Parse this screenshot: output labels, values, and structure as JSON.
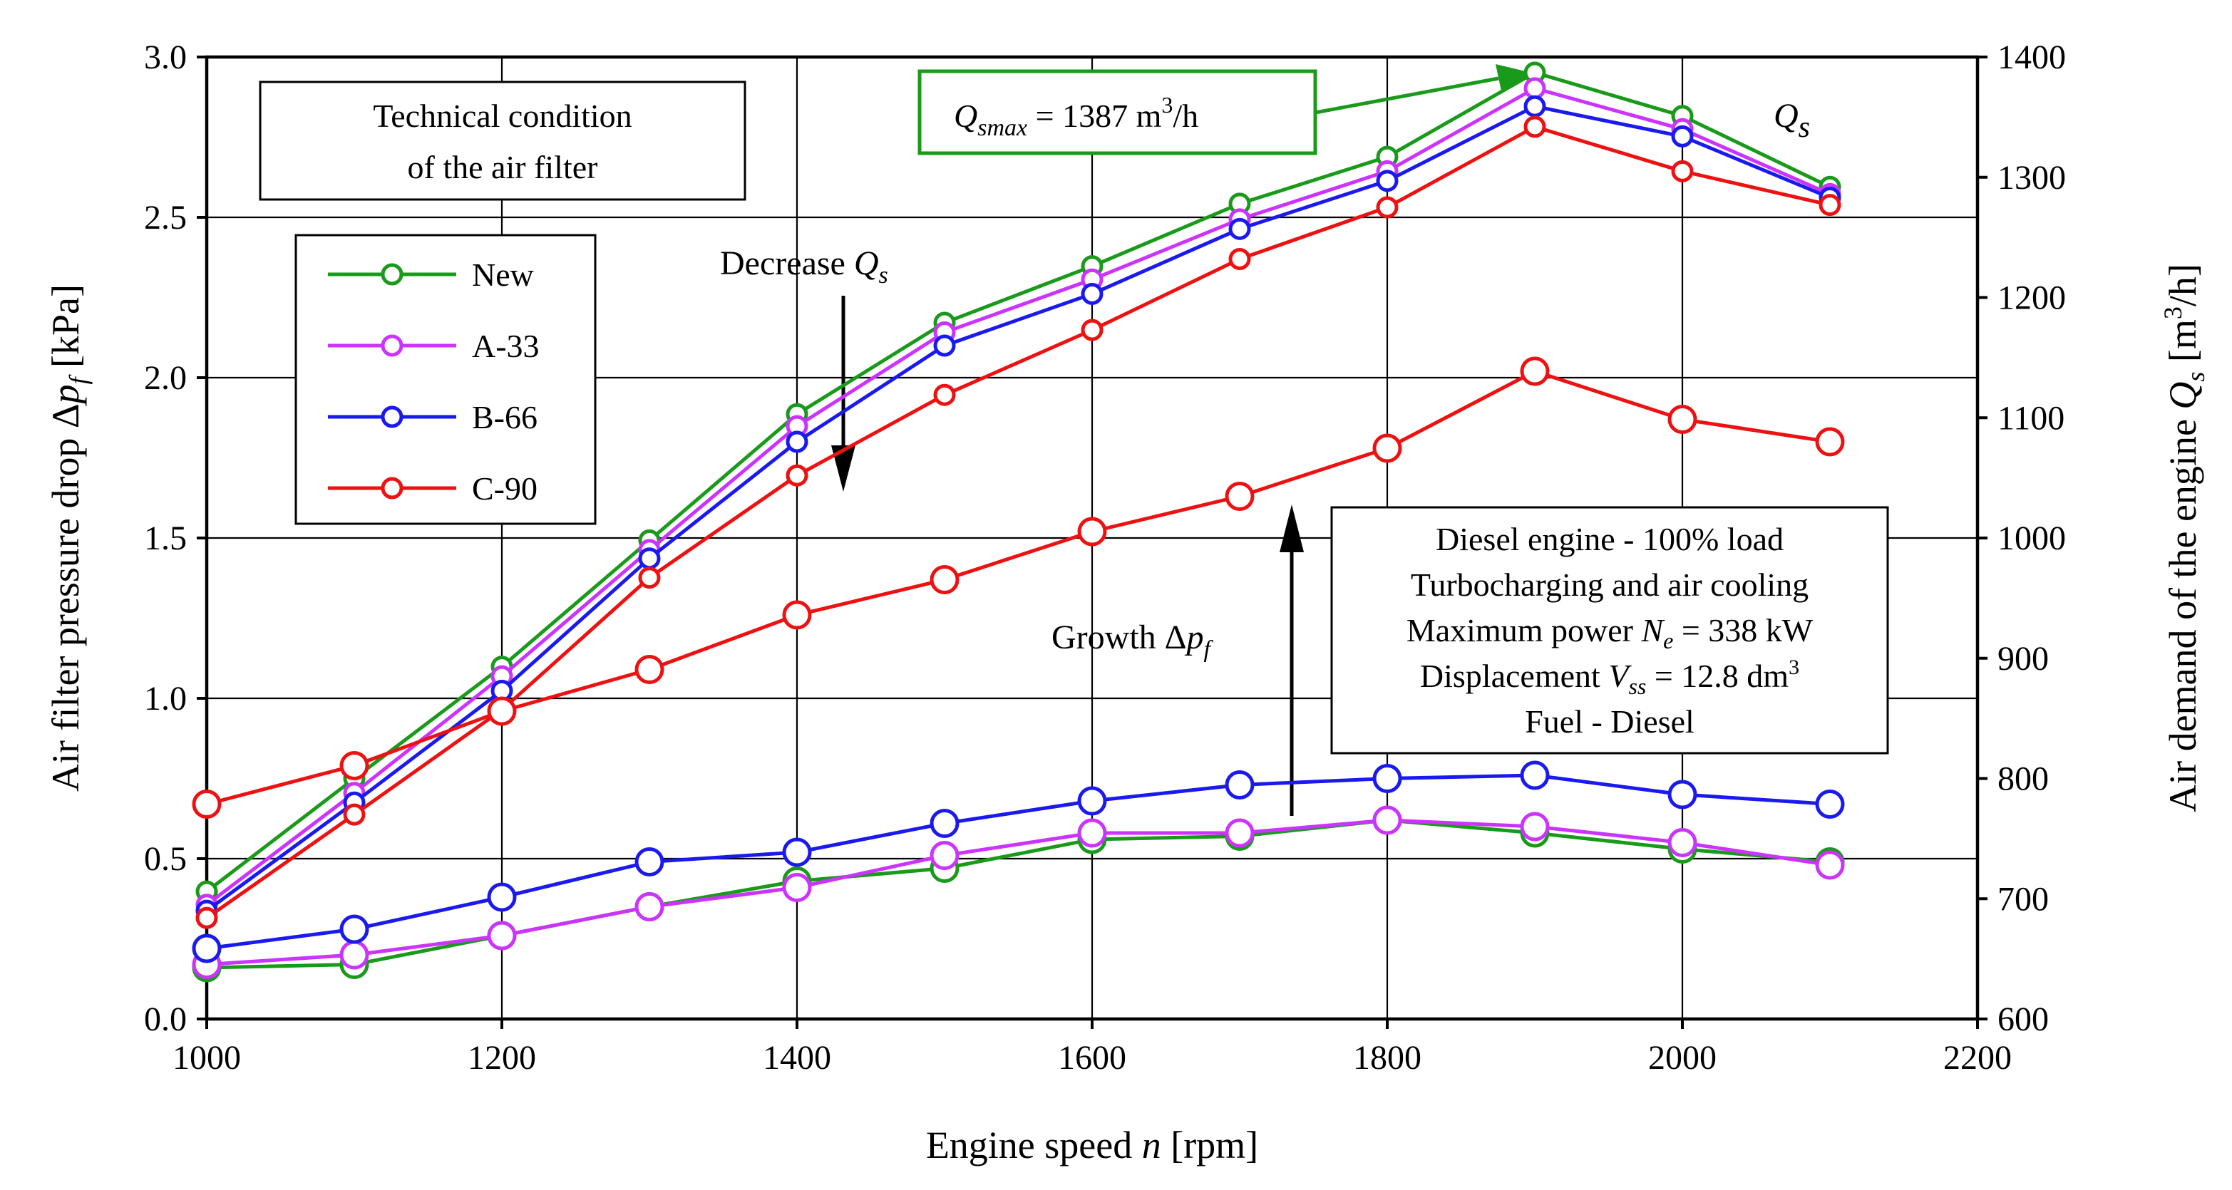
{
  "chart_data": {
    "type": "line",
    "x_label": {
      "pre": "Engine speed ",
      "var": "n",
      "post": " [rpm]"
    },
    "y_left_label": {
      "pre": "Air filter pressure drop Δ",
      "var": "p",
      "sub": "f",
      "post": " [kPa]"
    },
    "y_right_label": {
      "pre": "Air demand of the engine ",
      "var": "Q",
      "sub": "s",
      "mid": " [m",
      "sup": "3",
      "post": "/h]"
    },
    "xlim": [
      1000,
      2200
    ],
    "ylim_left": [
      0.0,
      3.0
    ],
    "ylim_right": [
      600,
      1400
    ],
    "x_ticks": [
      "1000",
      "1200",
      "1400",
      "1600",
      "1800",
      "2000",
      "2200"
    ],
    "y_left_ticks": [
      "0.0",
      "0.5",
      "1.0",
      "1.5",
      "2.0",
      "2.5",
      "3.0"
    ],
    "y_right_ticks": [
      "600",
      "700",
      "800",
      "900",
      "1000",
      "1100",
      "1200",
      "1300",
      "1400"
    ],
    "x": [
      1000,
      1100,
      1200,
      1300,
      1400,
      1500,
      1600,
      1700,
      1800,
      1900,
      2000,
      2100
    ],
    "series": [
      {
        "name": "New",
        "color": "#1a9a1a",
        "axis": "right",
        "values": [
          706,
          800,
          893,
          998,
          1103,
          1179,
          1226,
          1278,
          1317,
          1387,
          1351,
          1292
        ]
      },
      {
        "name": "A-33",
        "color": "#cc33ff",
        "axis": "right",
        "values": [
          695,
          788,
          885,
          990,
          1093,
          1171,
          1215,
          1265,
          1305,
          1374,
          1340,
          1286
        ]
      },
      {
        "name": "B-66",
        "color": "#1a1aee",
        "axis": "right",
        "values": [
          690,
          780,
          873,
          983,
          1080,
          1160,
          1203,
          1257,
          1297,
          1359,
          1334,
          1283
        ]
      },
      {
        "name": "C-90",
        "color": "#ee1111",
        "axis": "right",
        "values": [
          684,
          770,
          857,
          967,
          1052,
          1119,
          1173,
          1232,
          1275,
          1342,
          1305,
          1277
        ]
      },
      {
        "name": "New",
        "color": "#1a9a1a",
        "axis": "left",
        "values": [
          0.16,
          0.17,
          0.26,
          0.35,
          0.43,
          0.47,
          0.56,
          0.57,
          0.62,
          0.58,
          0.53,
          0.49
        ]
      },
      {
        "name": "A-33",
        "color": "#cc33ff",
        "axis": "left",
        "values": [
          0.17,
          0.2,
          0.26,
          0.35,
          0.41,
          0.51,
          0.58,
          0.58,
          0.62,
          0.6,
          0.55,
          0.48
        ]
      },
      {
        "name": "B-66",
        "color": "#1a1aee",
        "axis": "left",
        "values": [
          0.22,
          0.28,
          0.38,
          0.49,
          0.52,
          0.61,
          0.68,
          0.73,
          0.75,
          0.76,
          0.7,
          0.67
        ]
      },
      {
        "name": "C-90",
        "color": "#ee1111",
        "axis": "left",
        "values": [
          0.67,
          0.79,
          0.96,
          1.09,
          1.26,
          1.37,
          1.52,
          1.63,
          1.78,
          2.02,
          1.87,
          1.8
        ]
      }
    ],
    "legend": [
      {
        "name": "New",
        "color": "#1a9a1a"
      },
      {
        "name": "A-33",
        "color": "#cc33ff"
      },
      {
        "name": "B-66",
        "color": "#1a1aee"
      },
      {
        "name": "C-90",
        "color": "#ee1111"
      }
    ],
    "legend_title": [
      "Technical condition",
      "of the air filter"
    ],
    "q_curves_label": {
      "var": "Q",
      "sub": "s"
    },
    "qmax_box": {
      "var": "Q",
      "sub": "smax",
      "value": " = 1387 m",
      "sup": "3",
      "post": "/h",
      "border_color": "#1a9a1a"
    },
    "decrease_label": {
      "pre": "Decrease ",
      "var": "Q",
      "sub": "s"
    },
    "growth_label": {
      "pre": "Growth Δ",
      "var": "p",
      "sub": "f"
    },
    "info_box": {
      "line1": "Diesel engine - 100% load",
      "line2": "Turbocharging and air cooling",
      "line3_pre": "Maximum power ",
      "line3_var": "N",
      "line3_sub": "e",
      "line3_post": " = 338 kW",
      "line4_pre": "Displacement ",
      "line4_var": "V",
      "line4_sub": "ss",
      "line4_mid": " = 12.8 dm",
      "line4_sup": "3",
      "line5": "Fuel - Diesel"
    }
  }
}
